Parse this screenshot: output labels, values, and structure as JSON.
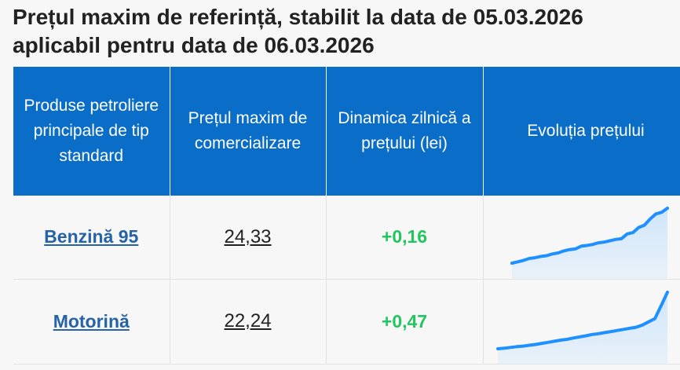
{
  "title": {
    "line1": "Prețul maxim de referință, stabilit la data de 05.03.2026",
    "line2": "aplicabil pentru data de 06.03.2026"
  },
  "table": {
    "headers": [
      "Produse petroliere principale de tip standard",
      "Prețul maxim de comercializare",
      "Dinamica zilnică a prețului (lei)",
      "Evoluția prețului"
    ],
    "rows": [
      {
        "product": "Benzină 95",
        "price": "24,33",
        "delta": "+0,16",
        "trend": [
          0.0,
          0.04,
          0.08,
          0.14,
          0.16,
          0.2,
          0.22,
          0.27,
          0.3,
          0.36,
          0.4,
          0.42,
          0.5,
          0.52,
          0.55,
          0.6,
          0.62,
          0.66,
          0.7,
          0.72,
          0.86,
          0.9,
          1.05,
          1.12,
          1.3,
          1.45,
          1.5,
          1.62
        ]
      },
      {
        "product": "Motorină",
        "price": "22,24",
        "delta": "+0,47",
        "trend": [
          0.0,
          0.02,
          0.05,
          0.08,
          0.1,
          0.13,
          0.16,
          0.2,
          0.24,
          0.28,
          0.32,
          0.35,
          0.4,
          0.44,
          0.48,
          0.53,
          0.56,
          0.6,
          0.64,
          0.68,
          0.72,
          0.76,
          0.8,
          0.88,
          1.0,
          1.12,
          1.6,
          2.1
        ]
      }
    ]
  },
  "colors": {
    "header_bg": "#0a6dc8",
    "link": "#2563a6",
    "delta_positive": "#22c55e",
    "sparkline_line": "#1e90ff",
    "sparkline_fill": "#cfe6fb"
  }
}
